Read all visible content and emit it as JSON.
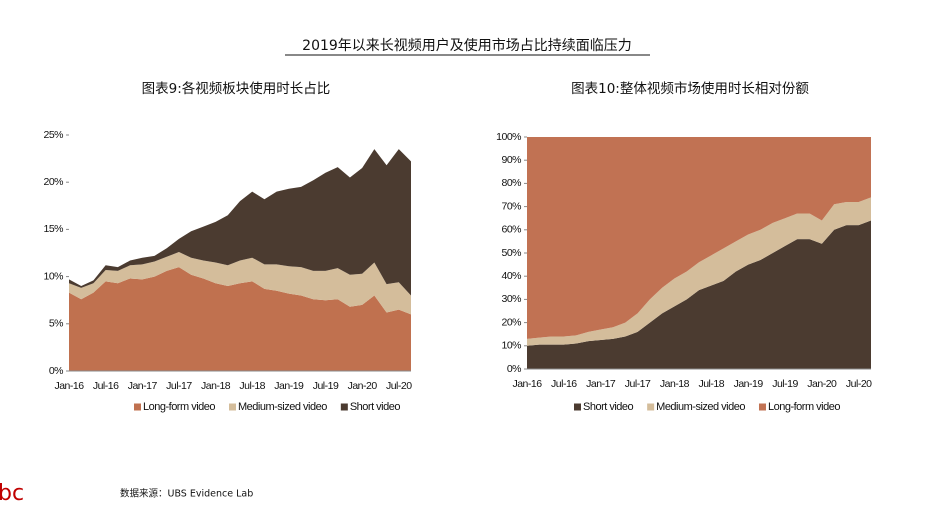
{
  "title": "2019年以来长视频用户及使用市场占比持续面临压力",
  "source": "数据来源：UBS Evidence Lab",
  "logo": "bc",
  "chart_data": [
    {
      "type": "stacked-area",
      "title": "图表9:各视频板块使用时长占比",
      "categories": [
        "Jan-16",
        null,
        null,
        "Jul-16",
        null,
        null,
        "Jan-17",
        null,
        null,
        "Jul-17",
        null,
        null,
        "Jan-18",
        null,
        null,
        "Jul-18",
        null,
        null,
        "Jan-19",
        null,
        null,
        "Jul-19",
        null,
        null,
        "Jan-20",
        null,
        null,
        "Jul-20",
        null
      ],
      "series": [
        {
          "name": "Long-form video",
          "color": "#c0714f",
          "values": [
            8.3,
            7.6,
            8.3,
            9.5,
            9.3,
            9.8,
            9.7,
            10.0,
            10.6,
            11.0,
            10.2,
            9.8,
            9.3,
            9.0,
            9.3,
            9.5,
            8.7,
            8.5,
            8.2,
            8.0,
            7.6,
            7.5,
            7.6,
            6.8,
            7.0,
            8.0,
            6.2,
            6.5,
            6.0
          ]
        },
        {
          "name": "Medium-sized video",
          "color": "#d4bd9b",
          "values": [
            1.0,
            1.2,
            1.0,
            1.2,
            1.3,
            1.4,
            1.6,
            1.6,
            1.5,
            1.6,
            1.8,
            1.9,
            2.2,
            2.2,
            2.4,
            2.5,
            2.6,
            2.8,
            2.9,
            3.0,
            3.0,
            3.1,
            3.3,
            3.4,
            3.3,
            3.5,
            3.0,
            2.9,
            2.0
          ]
        },
        {
          "name": "Short video",
          "color": "#4b3b30",
          "values": [
            0.4,
            0.2,
            0.3,
            0.5,
            0.4,
            0.5,
            0.7,
            0.6,
            0.9,
            1.4,
            2.8,
            3.6,
            4.3,
            5.3,
            6.3,
            7.0,
            6.9,
            7.7,
            8.2,
            8.5,
            9.6,
            10.4,
            10.7,
            10.3,
            11.2,
            12.0,
            12.6,
            14.1,
            14.2
          ]
        }
      ],
      "ylim": [
        0,
        25
      ],
      "yticks": [
        {
          "value": 0,
          "label": "0%"
        },
        {
          "value": 5,
          "label": "5%"
        },
        {
          "value": 10,
          "label": "10%"
        },
        {
          "value": 15,
          "label": "15%"
        },
        {
          "value": 20,
          "label": "20%"
        },
        {
          "value": 25,
          "label": "25%"
        }
      ],
      "legend": "bottom"
    },
    {
      "type": "stacked-area",
      "title": "图表10:整体视频市场使用时长相对份额",
      "categories": [
        "Jan-16",
        null,
        null,
        "Jul-16",
        null,
        null,
        "Jan-17",
        null,
        null,
        "Jul-17",
        null,
        null,
        "Jan-18",
        null,
        null,
        "Jul-18",
        null,
        null,
        "Jan-19",
        null,
        null,
        "Jul-19",
        null,
        null,
        "Jan-20",
        null,
        null,
        "Jul-20",
        null
      ],
      "series": [
        {
          "name": "Short video",
          "color": "#4b3b30",
          "values": [
            10,
            10.5,
            10.5,
            10.5,
            11,
            12,
            12.5,
            13,
            14,
            16,
            20,
            24,
            27,
            30,
            34,
            36,
            38,
            42,
            45,
            47,
            50,
            53,
            56,
            56,
            54,
            60,
            62,
            62,
            64
          ]
        },
        {
          "name": "Medium-sized video",
          "color": "#d4bd9b",
          "values": [
            3,
            3,
            3.5,
            3.5,
            3.5,
            4,
            4.5,
            5,
            6,
            8,
            10,
            11,
            12,
            12,
            12,
            13,
            14,
            13,
            13,
            13,
            13,
            12,
            11,
            11,
            10,
            11,
            10,
            10,
            10
          ]
        },
        {
          "name": "Long-form video",
          "color": "#c17253",
          "values": [
            87,
            86.5,
            86,
            86,
            85.5,
            84,
            83,
            82,
            80,
            76,
            70,
            65,
            61,
            58,
            54,
            51,
            48,
            45,
            42,
            40,
            37,
            35,
            33,
            33,
            36,
            29,
            28,
            28,
            26
          ]
        }
      ],
      "ylim": [
        0,
        100
      ],
      "yticks": [
        {
          "value": 0,
          "label": "0%"
        },
        {
          "value": 10,
          "label": "10%"
        },
        {
          "value": 20,
          "label": "20%"
        },
        {
          "value": 30,
          "label": "30%"
        },
        {
          "value": 40,
          "label": "40%"
        },
        {
          "value": 50,
          "label": "50%"
        },
        {
          "value": 60,
          "label": "60%"
        },
        {
          "value": 70,
          "label": "70%"
        },
        {
          "value": 80,
          "label": "80%"
        },
        {
          "value": 90,
          "label": "90%"
        },
        {
          "value": 100,
          "label": "100%"
        }
      ],
      "legend": "bottom"
    }
  ]
}
